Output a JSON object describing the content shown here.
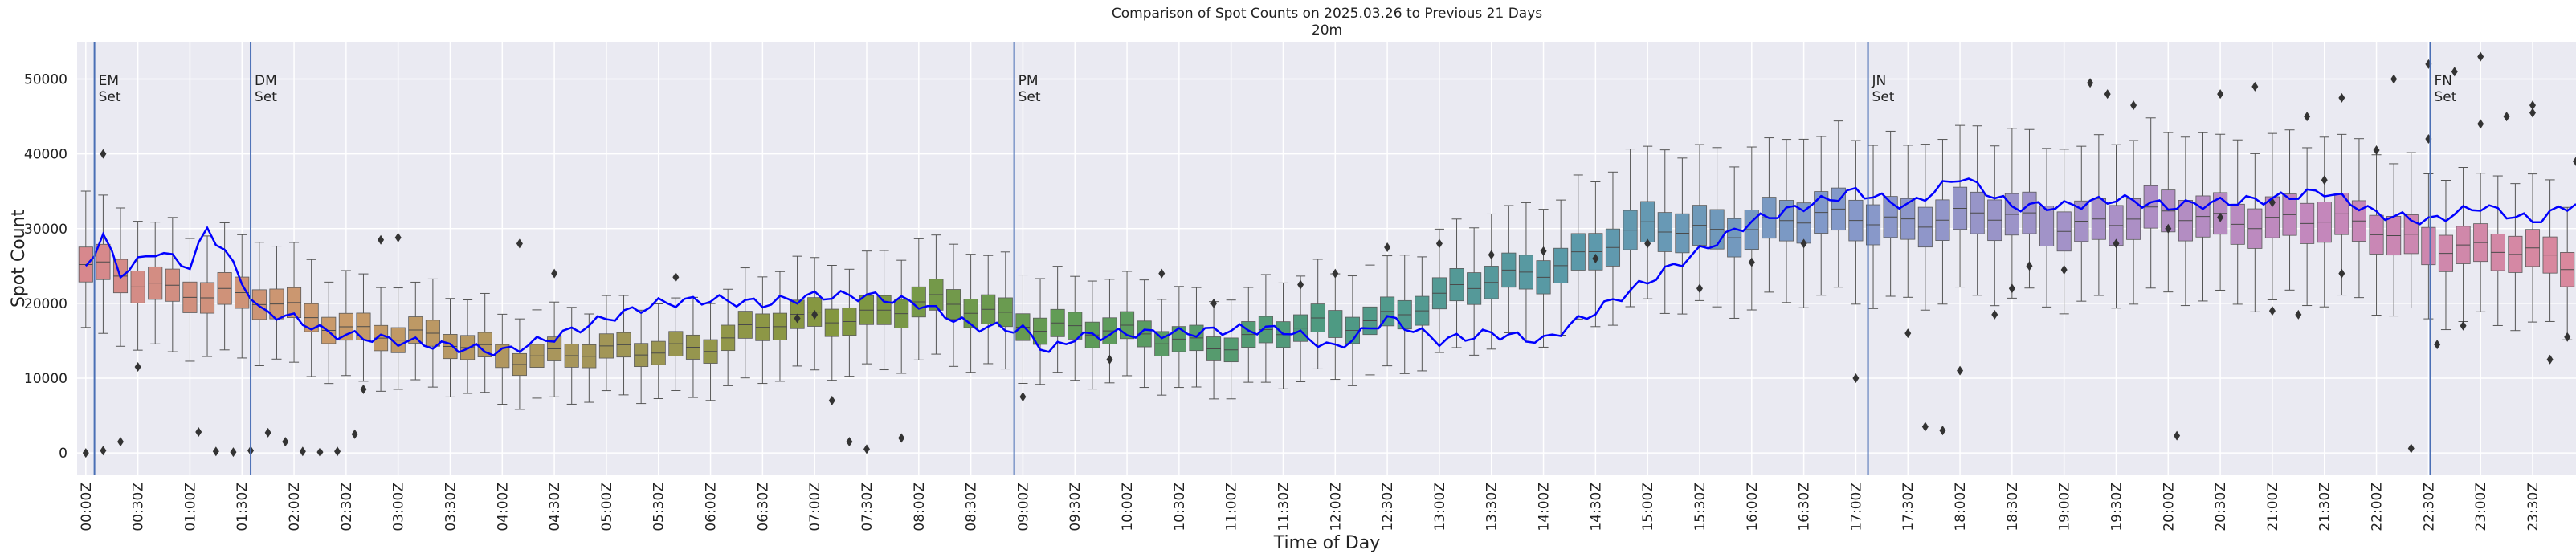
{
  "chart_data": {
    "type": "box",
    "title": "Comparison of Spot Counts on 2025.03.26 to Previous 21 Days",
    "subtitle": "20m",
    "xlabel": "Time of Day",
    "ylabel": "Spot Count",
    "ylim": [
      -3000,
      55000
    ],
    "yticks": [
      0,
      10000,
      20000,
      30000,
      40000,
      50000
    ],
    "ytick_labels": [
      "0",
      "10000",
      "20000",
      "30000",
      "40000",
      "50000"
    ],
    "xtick_labels": [
      "00:00Z",
      "00:30Z",
      "01:00Z",
      "01:30Z",
      "02:00Z",
      "02:30Z",
      "03:00Z",
      "03:30Z",
      "04:00Z",
      "04:30Z",
      "05:00Z",
      "05:30Z",
      "06:00Z",
      "06:30Z",
      "07:00Z",
      "07:30Z",
      "08:00Z",
      "08:30Z",
      "09:00Z",
      "09:30Z",
      "10:00Z",
      "10:30Z",
      "11:00Z",
      "11:30Z",
      "12:00Z",
      "12:30Z",
      "13:00Z",
      "13:30Z",
      "14:00Z",
      "14:30Z",
      "15:00Z",
      "15:30Z",
      "16:00Z",
      "16:30Z",
      "17:00Z",
      "17:30Z",
      "18:00Z",
      "18:30Z",
      "19:00Z",
      "19:30Z",
      "20:00Z",
      "20:30Z",
      "21:00Z",
      "21:30Z",
      "22:00Z",
      "22:30Z",
      "23:00Z",
      "23:30Z"
    ],
    "bin_minutes": 10,
    "median_anchors": [
      [
        0,
        24500
      ],
      [
        60,
        22000
      ],
      [
        120,
        19000
      ],
      [
        180,
        15500
      ],
      [
        240,
        13500
      ],
      [
        300,
        13000
      ],
      [
        360,
        15000
      ],
      [
        420,
        18000
      ],
      [
        480,
        20000
      ],
      [
        540,
        18000
      ],
      [
        600,
        15500
      ],
      [
        660,
        15000
      ],
      [
        720,
        17000
      ],
      [
        780,
        20500
      ],
      [
        840,
        25000
      ],
      [
        900,
        29500
      ],
      [
        960,
        30500
      ],
      [
        1020,
        31500
      ],
      [
        1080,
        31500
      ],
      [
        1140,
        31000
      ],
      [
        1200,
        31500
      ],
      [
        1260,
        31500
      ],
      [
        1320,
        30000
      ],
      [
        1380,
        27000
      ],
      [
        1439,
        25500
      ]
    ],
    "current_day_anchors": [
      [
        0,
        25000
      ],
      [
        10,
        29000
      ],
      [
        20,
        24000
      ],
      [
        40,
        27000
      ],
      [
        60,
        25000
      ],
      [
        70,
        30000
      ],
      [
        80,
        27000
      ],
      [
        100,
        19000
      ],
      [
        120,
        18000
      ],
      [
        140,
        16000
      ],
      [
        160,
        15500
      ],
      [
        180,
        15000
      ],
      [
        200,
        14500
      ],
      [
        220,
        14000
      ],
      [
        240,
        13500
      ],
      [
        270,
        15500
      ],
      [
        300,
        18000
      ],
      [
        330,
        20000
      ],
      [
        360,
        20500
      ],
      [
        390,
        20000
      ],
      [
        420,
        21000
      ],
      [
        450,
        21000
      ],
      [
        480,
        20000
      ],
      [
        510,
        17000
      ],
      [
        540,
        16500
      ],
      [
        555,
        13500
      ],
      [
        570,
        15500
      ],
      [
        600,
        16000
      ],
      [
        630,
        16000
      ],
      [
        660,
        16500
      ],
      [
        690,
        16500
      ],
      [
        720,
        14000
      ],
      [
        750,
        18000
      ],
      [
        780,
        15000
      ],
      [
        810,
        16000
      ],
      [
        840,
        15000
      ],
      [
        870,
        19000
      ],
      [
        900,
        23000
      ],
      [
        930,
        27000
      ],
      [
        960,
        31000
      ],
      [
        990,
        33000
      ],
      [
        1020,
        35000
      ],
      [
        1050,
        33000
      ],
      [
        1080,
        37000
      ],
      [
        1110,
        33000
      ],
      [
        1140,
        33000
      ],
      [
        1170,
        34000
      ],
      [
        1200,
        33000
      ],
      [
        1230,
        33500
      ],
      [
        1260,
        34000
      ],
      [
        1290,
        35000
      ],
      [
        1320,
        32000
      ],
      [
        1350,
        31000
      ],
      [
        1380,
        33000
      ],
      [
        1410,
        31000
      ],
      [
        1435,
        33500
      ]
    ],
    "outliers": [
      [
        0,
        0
      ],
      [
        10,
        40000
      ],
      [
        20,
        1500
      ],
      [
        10,
        300
      ],
      [
        30,
        11500
      ],
      [
        65,
        2800
      ],
      [
        75,
        200
      ],
      [
        85,
        100
      ],
      [
        95,
        300
      ],
      [
        105,
        2700
      ],
      [
        115,
        1500
      ],
      [
        125,
        200
      ],
      [
        135,
        100
      ],
      [
        145,
        200
      ],
      [
        155,
        2500
      ],
      [
        160,
        8500
      ],
      [
        170,
        28500
      ],
      [
        180,
        28800
      ],
      [
        250,
        28000
      ],
      [
        270,
        24000
      ],
      [
        340,
        23500
      ],
      [
        410,
        18000
      ],
      [
        420,
        18500
      ],
      [
        430,
        7000
      ],
      [
        440,
        1500
      ],
      [
        450,
        500
      ],
      [
        470,
        2000
      ],
      [
        540,
        7500
      ],
      [
        590,
        12500
      ],
      [
        620,
        24000
      ],
      [
        650,
        20000
      ],
      [
        700,
        22500
      ],
      [
        720,
        24000
      ],
      [
        750,
        27500
      ],
      [
        780,
        28000
      ],
      [
        810,
        26500
      ],
      [
        840,
        27000
      ],
      [
        870,
        26000
      ],
      [
        900,
        28000
      ],
      [
        930,
        22000
      ],
      [
        960,
        25500
      ],
      [
        990,
        28000
      ],
      [
        1020,
        10000
      ],
      [
        1050,
        16000
      ],
      [
        1060,
        3500
      ],
      [
        1070,
        3000
      ],
      [
        1080,
        11000
      ],
      [
        1110,
        22000
      ],
      [
        1140,
        24500
      ],
      [
        1170,
        28000
      ],
      [
        1200,
        30000
      ],
      [
        1230,
        31500
      ],
      [
        1260,
        33500
      ],
      [
        1290,
        36500
      ],
      [
        1320,
        40500
      ],
      [
        1350,
        42000
      ],
      [
        1380,
        44000
      ],
      [
        1410,
        46500
      ],
      [
        1435,
        39000
      ],
      [
        1100,
        18500
      ],
      [
        1120,
        25000
      ],
      [
        1155,
        49500
      ],
      [
        1165,
        48000
      ],
      [
        1180,
        46500
      ],
      [
        1205,
        2300
      ],
      [
        1230,
        48000
      ],
      [
        1250,
        49000
      ],
      [
        1280,
        45000
      ],
      [
        1300,
        47500
      ],
      [
        1330,
        50000
      ],
      [
        1350,
        52000
      ],
      [
        1365,
        51000
      ],
      [
        1380,
        53000
      ],
      [
        1395,
        45000
      ],
      [
        1410,
        45500
      ],
      [
        1260,
        19000
      ],
      [
        1275,
        18500
      ],
      [
        1300,
        24000
      ],
      [
        1340,
        600
      ],
      [
        1355,
        14500
      ],
      [
        1370,
        17000
      ],
      [
        1420,
        12500
      ],
      [
        1430,
        15500
      ]
    ],
    "vertical_lines": [
      {
        "time_min": 10,
        "label_1": "EM",
        "label_2": "Set"
      },
      {
        "time_min": 100,
        "label_1": "DM",
        "label_2": "Set"
      },
      {
        "time_min": 540,
        "label_1": "PM",
        "label_2": "Set"
      },
      {
        "time_min": 1032,
        "label_1": "JN",
        "label_2": "Set"
      },
      {
        "time_min": 1356,
        "label_1": "FN",
        "label_2": "Set"
      }
    ],
    "colors": {
      "background": "#eaeaf2",
      "grid": "#ffffff",
      "current_day_line": "#0000ff",
      "vertical_line": "#4a6fb5",
      "box_edge": "#555555",
      "outlier": "#333333",
      "hue_stops": [
        "#d7888d",
        "#c99a6a",
        "#a5965a",
        "#84973f",
        "#5f9c57",
        "#4e9a82",
        "#5a99a9",
        "#8199c9",
        "#a492c8",
        "#c487bc",
        "#d9889d"
      ]
    }
  }
}
